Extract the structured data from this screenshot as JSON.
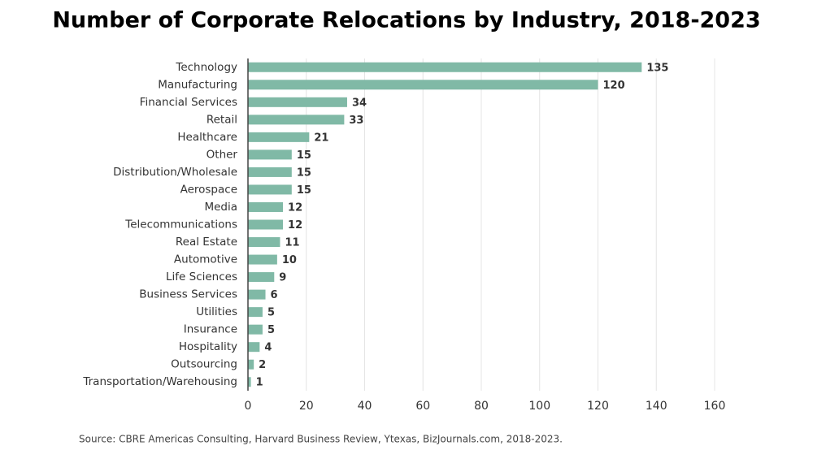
{
  "chart_data": {
    "type": "bar",
    "orientation": "horizontal",
    "title": "Number of Corporate Relocations by Industry, 2018-2023",
    "source": "Source: CBRE Americas Consulting, Harvard Business Review, Ytexas, BizJournals.com, 2018-2023.",
    "categories": [
      "Technology",
      "Manufacturing",
      "Financial Services",
      "Retail",
      "Healthcare",
      "Other",
      "Distribution/Wholesale",
      "Aerospace",
      "Media",
      "Telecommunications",
      "Real Estate",
      "Automotive",
      "Life Sciences",
      "Business Services",
      "Utilities",
      "Insurance",
      "Hospitality",
      "Outsourcing",
      "Transportation/Warehousing"
    ],
    "values": [
      135,
      120,
      34,
      33,
      21,
      15,
      15,
      15,
      12,
      12,
      11,
      10,
      9,
      6,
      5,
      5,
      4,
      2,
      1
    ],
    "color": "#80b9a6",
    "xlim": [
      0,
      160
    ],
    "xticks": [
      0,
      20,
      40,
      60,
      80,
      100,
      120,
      140,
      160
    ],
    "grid": true
  }
}
